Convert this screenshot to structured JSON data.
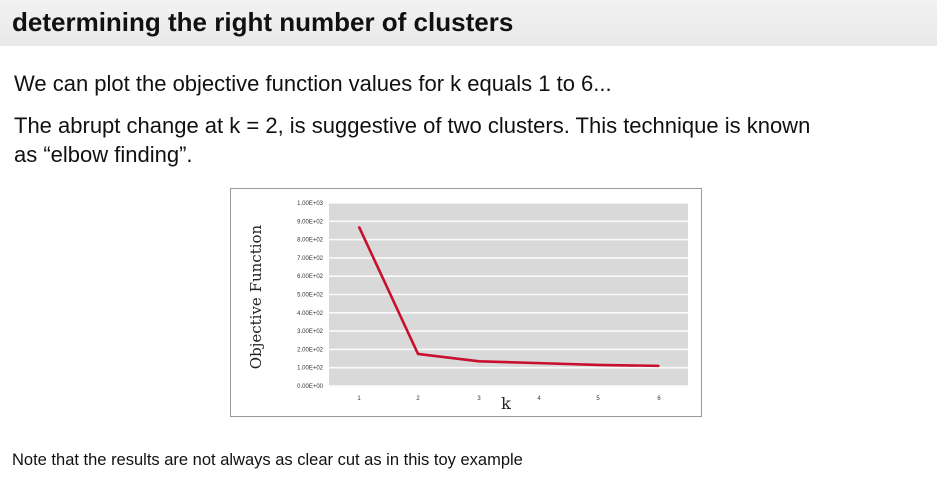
{
  "slide": {
    "title": "determining the right number of clusters",
    "paragraph1": "We can plot the objective function values for k equals 1 to 6...",
    "paragraph2_line1": "The abrupt change at k = 2, is suggestive of two clusters. This technique is known",
    "paragraph2_line2": "as “elbow finding”.",
    "note": "Note that the results are not always as clear cut as in this toy example"
  },
  "chart_data": {
    "type": "line",
    "x": [
      1,
      2,
      3,
      4,
      5,
      6
    ],
    "series": [
      {
        "values": [
          870,
          175,
          135,
          125,
          115,
          110
        ],
        "color": "#c8102e"
      }
    ],
    "xlabel": "k",
    "ylabel": "Objective Function",
    "ylim": [
      0,
      1000
    ],
    "yticks": [
      "0.00E+00",
      "1.00E+02",
      "2.00E+02",
      "3.00E+02",
      "4.00E+02",
      "5.00E+02",
      "6.00E+02",
      "7.00E+02",
      "8.00E+02",
      "9.00E+02",
      "1.00E+03"
    ],
    "xticks": [
      "1",
      "2",
      "3",
      "4",
      "5",
      "6"
    ],
    "grid": true,
    "plot_background": "#d9d9d9"
  }
}
